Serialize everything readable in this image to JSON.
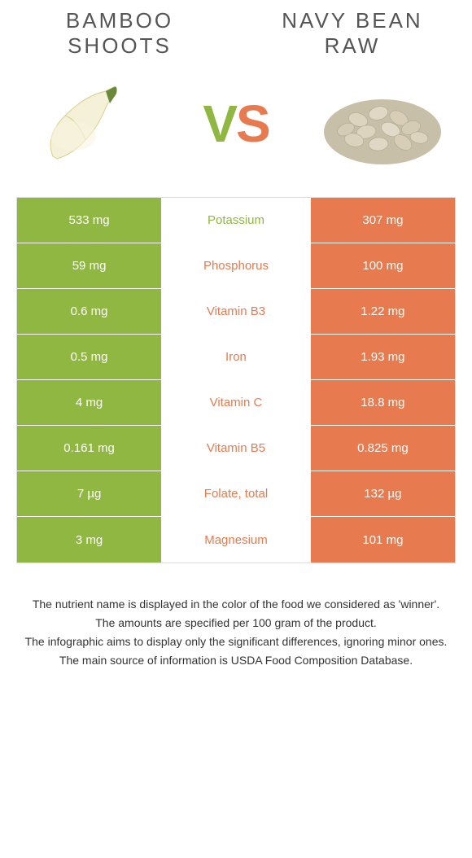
{
  "colors": {
    "green": "#8fb741",
    "orange": "#e77a4f",
    "mid_green": "#8fb741",
    "mid_orange": "#e77a4f"
  },
  "header": {
    "left_title": "BAMBOO SHOOTS",
    "right_title": "NAVY BEAN RAW"
  },
  "vs": {
    "v": "V",
    "s": "S"
  },
  "rows": [
    {
      "left": "533 mg",
      "mid": "Potassium",
      "right": "307 mg",
      "winner": "left"
    },
    {
      "left": "59 mg",
      "mid": "Phosphorus",
      "right": "100 mg",
      "winner": "right"
    },
    {
      "left": "0.6 mg",
      "mid": "Vitamin B3",
      "right": "1.22 mg",
      "winner": "right"
    },
    {
      "left": "0.5 mg",
      "mid": "Iron",
      "right": "1.93 mg",
      "winner": "right"
    },
    {
      "left": "4 mg",
      "mid": "Vitamin C",
      "right": "18.8 mg",
      "winner": "right"
    },
    {
      "left": "0.161 mg",
      "mid": "Vitamin B5",
      "right": "0.825 mg",
      "winner": "right"
    },
    {
      "left": "7 µg",
      "mid": "Folate, total",
      "right": "132 µg",
      "winner": "right"
    },
    {
      "left": "3 mg",
      "mid": "Magnesium",
      "right": "101 mg",
      "winner": "right"
    }
  ],
  "footer": {
    "l1": "The nutrient name is displayed in the color of the food we considered as 'winner'.",
    "l2": "The amounts are specified per 100 gram of the product.",
    "l3": "The infographic aims to display only the significant differences, ignoring minor ones.",
    "l4": "The main source of information is USDA Food Composition Database."
  }
}
